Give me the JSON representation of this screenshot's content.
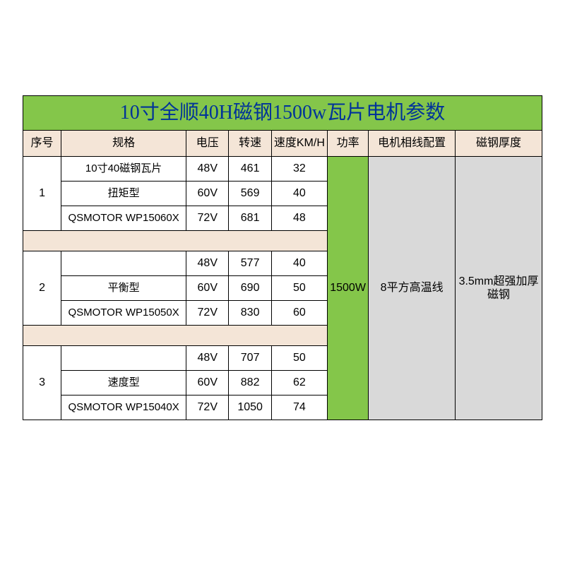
{
  "title": "10寸全顺40H磁钢1500w瓦片电机参数",
  "headers": {
    "seq": "序号",
    "spec": "规格",
    "voltage": "电压",
    "rpm": "转速",
    "speed": "速度KM/H",
    "power": "功率",
    "wire": "电机相线配置",
    "mag": "磁钢厚度"
  },
  "colors": {
    "title_bg": "#84c64a",
    "title_text": "#003399",
    "header_bg": "#f4e5d7",
    "spacer_bg": "#f4e5d7",
    "power_bg": "#84c64a",
    "grey_bg": "#d9d9d9",
    "border": "#000000",
    "page_bg": "#ffffff"
  },
  "merged": {
    "power": "1500W",
    "wire": "8平方高温线",
    "mag": "3.5mm超强加厚磁钢"
  },
  "groups": [
    {
      "seq": "1",
      "specs": [
        "10寸40磁钢瓦片",
        "扭矩型",
        "QSMOTOR WP15060X"
      ],
      "rows": [
        {
          "voltage": "48V",
          "rpm": "461",
          "speed": "32"
        },
        {
          "voltage": "60V",
          "rpm": "569",
          "speed": "40"
        },
        {
          "voltage": "72V",
          "rpm": "681",
          "speed": "48"
        }
      ]
    },
    {
      "seq": "2",
      "specs": [
        "",
        "平衡型",
        "QSMOTOR WP15050X"
      ],
      "rows": [
        {
          "voltage": "48V",
          "rpm": "577",
          "speed": "40"
        },
        {
          "voltage": "60V",
          "rpm": "690",
          "speed": "50"
        },
        {
          "voltage": "72V",
          "rpm": "830",
          "speed": "60"
        }
      ]
    },
    {
      "seq": "3",
      "specs": [
        "",
        "速度型",
        "QSMOTOR WP15040X"
      ],
      "rows": [
        {
          "voltage": "48V",
          "rpm": "707",
          "speed": "50"
        },
        {
          "voltage": "60V",
          "rpm": "882",
          "speed": "62"
        },
        {
          "voltage": "72V",
          "rpm": "1050",
          "speed": "74"
        }
      ]
    }
  ]
}
